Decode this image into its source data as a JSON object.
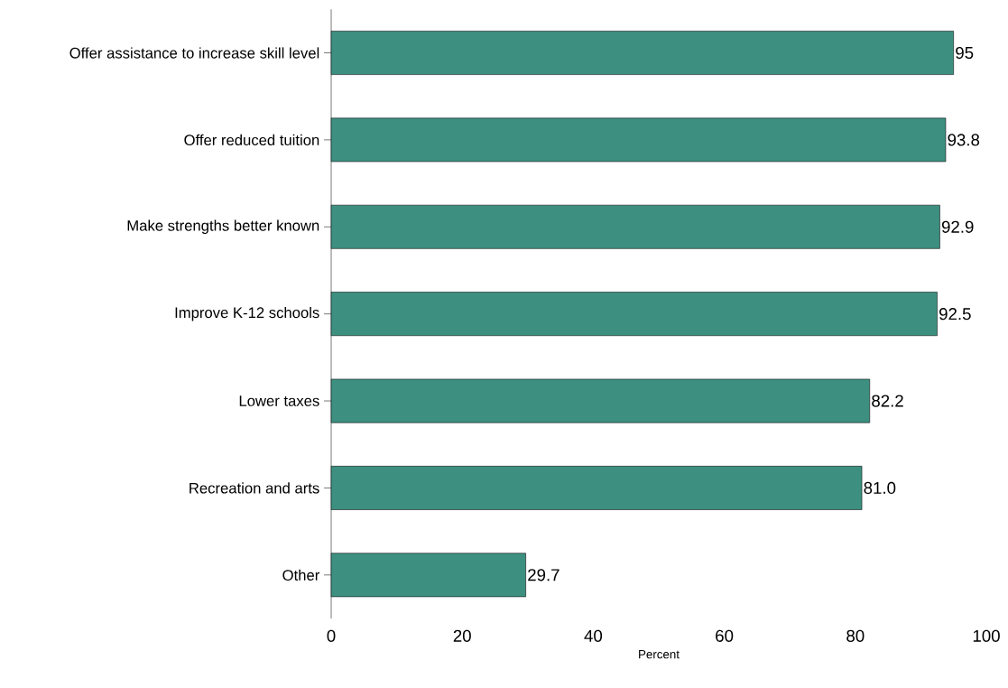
{
  "chart_data": {
    "type": "bar",
    "orientation": "horizontal",
    "xlabel": "Percent",
    "categories": [
      "Offer assistance to increase skill level",
      "Offer reduced tuition",
      "Make strengths better known",
      "Improve K-12 schools",
      "Lower taxes",
      "Recreation and arts",
      "Other"
    ],
    "values": [
      95,
      93.8,
      92.9,
      92.5,
      82.2,
      81.0,
      29.7
    ],
    "value_labels": [
      "95",
      "93.8",
      "92.9",
      "92.5",
      "82.2",
      "81.0",
      "29.7"
    ],
    "color": "#3d8f80",
    "xlim": [
      0,
      100
    ],
    "xticks": [
      0,
      20,
      40,
      60,
      80,
      100
    ],
    "grid": false
  }
}
